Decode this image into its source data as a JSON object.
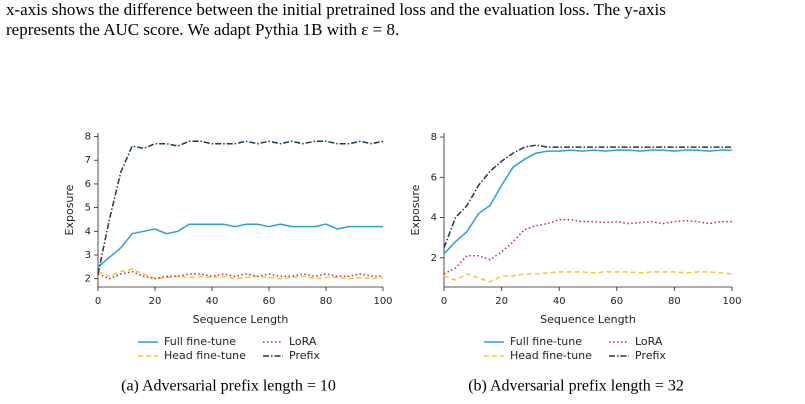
{
  "paragraph": [
    "x-axis shows the difference between the initial pretrained loss and the evaluation loss. The y-axis",
    "represents the AUC score. We adapt Pythia 1B with ε = 8."
  ],
  "chart_data": [
    {
      "type": "line",
      "caption": "(a) Adversarial prefix length = 10",
      "x_label": "Sequence Length",
      "y_label": "Exposure",
      "x": [
        0,
        4,
        8,
        12,
        16,
        20,
        24,
        28,
        32,
        36,
        40,
        44,
        48,
        52,
        56,
        60,
        64,
        68,
        72,
        76,
        80,
        84,
        88,
        92,
        96,
        100
      ],
      "xlim": [
        0,
        100
      ],
      "xticks": [
        0,
        20,
        40,
        60,
        80,
        100
      ],
      "ylim": [
        1.65,
        8.15
      ],
      "yticks": [
        2,
        3,
        4,
        5,
        6,
        7,
        8
      ],
      "series": [
        {
          "name": "Full fine-tune",
          "color": "#2aa3c9",
          "dash": "solid",
          "values": [
            2.5,
            2.9,
            3.3,
            3.9,
            4.0,
            4.1,
            3.9,
            4.0,
            4.3,
            4.3,
            4.3,
            4.3,
            4.2,
            4.3,
            4.3,
            4.2,
            4.3,
            4.2,
            4.2,
            4.2,
            4.3,
            4.1,
            4.2,
            4.2,
            4.2,
            4.2
          ]
        },
        {
          "name": "Head fine-tune",
          "color": "#f5c542",
          "dash": "dashed",
          "values": [
            2.3,
            2.1,
            2.3,
            2.4,
            2.2,
            2.0,
            2.05,
            2.1,
            2.05,
            2.1,
            2.05,
            2.1,
            2.0,
            2.05,
            2.1,
            2.05,
            2.0,
            2.05,
            2.1,
            2.0,
            2.05,
            2.05,
            2.0,
            2.05,
            2.0,
            2.05
          ]
        },
        {
          "name": "LoRA",
          "color": "#c0273d",
          "dash": "dotted",
          "values": [
            2.2,
            2.0,
            2.2,
            2.3,
            2.1,
            2.0,
            2.1,
            2.1,
            2.2,
            2.2,
            2.1,
            2.2,
            2.1,
            2.2,
            2.1,
            2.2,
            2.1,
            2.1,
            2.2,
            2.1,
            2.2,
            2.1,
            2.1,
            2.2,
            2.1,
            2.1
          ]
        },
        {
          "name": "Prefix",
          "color": "#1c3a4a",
          "dash": "dashdot",
          "values": [
            2.2,
            4.5,
            6.5,
            7.6,
            7.5,
            7.7,
            7.7,
            7.6,
            7.8,
            7.8,
            7.7,
            7.7,
            7.7,
            7.8,
            7.7,
            7.8,
            7.7,
            7.8,
            7.7,
            7.8,
            7.8,
            7.7,
            7.7,
            7.8,
            7.7,
            7.8
          ]
        }
      ]
    },
    {
      "type": "line",
      "caption": "(b) Adversarial prefix length = 32",
      "x_label": "Sequence Length",
      "y_label": "Exposure",
      "x": [
        0,
        4,
        8,
        12,
        16,
        20,
        24,
        28,
        32,
        36,
        40,
        44,
        48,
        52,
        56,
        60,
        64,
        68,
        72,
        76,
        80,
        84,
        88,
        92,
        96,
        100
      ],
      "xlim": [
        0,
        100
      ],
      "xticks": [
        0,
        20,
        40,
        60,
        80,
        100
      ],
      "ylim": [
        0.55,
        8.2
      ],
      "yticks": [
        2,
        4,
        6,
        8
      ],
      "series": [
        {
          "name": "Full fine-tune",
          "color": "#2aa3c9",
          "dash": "solid",
          "values": [
            2.2,
            2.8,
            3.3,
            4.2,
            4.6,
            5.6,
            6.5,
            6.9,
            7.2,
            7.3,
            7.3,
            7.35,
            7.3,
            7.35,
            7.3,
            7.35,
            7.35,
            7.3,
            7.35,
            7.35,
            7.3,
            7.35,
            7.35,
            7.3,
            7.35,
            7.35
          ]
        },
        {
          "name": "Head fine-tune",
          "color": "#f5c542",
          "dash": "dashed",
          "values": [
            1.1,
            0.9,
            1.2,
            1.0,
            0.8,
            1.1,
            1.1,
            1.2,
            1.2,
            1.25,
            1.3,
            1.3,
            1.3,
            1.25,
            1.3,
            1.3,
            1.3,
            1.25,
            1.3,
            1.3,
            1.3,
            1.25,
            1.3,
            1.3,
            1.25,
            1.2
          ]
        },
        {
          "name": "LoRA",
          "color": "#c0273d",
          "dash": "dotted",
          "values": [
            1.2,
            1.5,
            2.1,
            2.1,
            1.9,
            2.3,
            2.8,
            3.4,
            3.6,
            3.7,
            3.9,
            3.9,
            3.8,
            3.8,
            3.75,
            3.8,
            3.7,
            3.75,
            3.8,
            3.7,
            3.8,
            3.85,
            3.8,
            3.7,
            3.8,
            3.8
          ]
        },
        {
          "name": "Prefix",
          "color": "#1c3a4a",
          "dash": "dashdot",
          "values": [
            2.5,
            4.0,
            4.6,
            5.6,
            6.3,
            6.8,
            7.2,
            7.5,
            7.6,
            7.5,
            7.5,
            7.5,
            7.5,
            7.5,
            7.5,
            7.5,
            7.5,
            7.5,
            7.5,
            7.5,
            7.5,
            7.5,
            7.5,
            7.5,
            7.5,
            7.5
          ]
        }
      ]
    }
  ]
}
